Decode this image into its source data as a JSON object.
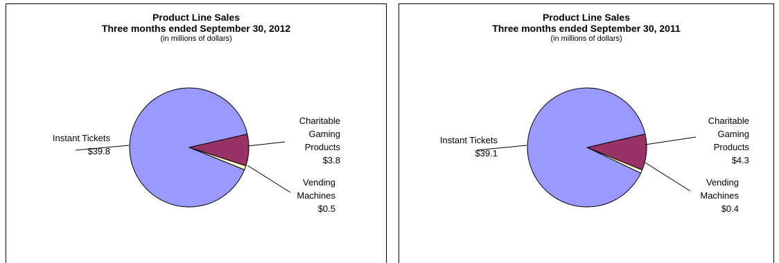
{
  "chart_data": [
    {
      "type": "pie",
      "title": "Product Line Sales",
      "subtitle": "Three months ended September 30, 2012",
      "note": "(in millions of dollars)",
      "slices": [
        {
          "name": "Instant Tickets",
          "value": 39.8,
          "value_label": "$39.8",
          "color": "#9999ff"
        },
        {
          "name": "Charitable Gaming Products",
          "value": 3.8,
          "value_label": "$3.8",
          "color": "#993366"
        },
        {
          "name": "Vending Machines",
          "value": 0.5,
          "value_label": "$0.5",
          "color": "#ffffcc"
        }
      ]
    },
    {
      "type": "pie",
      "title": "Product Line Sales",
      "subtitle": "Three months ended September 30, 2011",
      "note": "(in millions of dollars)",
      "slices": [
        {
          "name": "Instant Tickets",
          "value": 39.1,
          "value_label": "$39.1",
          "color": "#9999ff"
        },
        {
          "name": "Charitable Gaming Products",
          "value": 4.3,
          "value_label": "$4.3",
          "color": "#993366"
        },
        {
          "name": "Vending Machines",
          "value": 0.4,
          "value_label": "$0.4",
          "color": "#ffffcc"
        }
      ]
    }
  ]
}
